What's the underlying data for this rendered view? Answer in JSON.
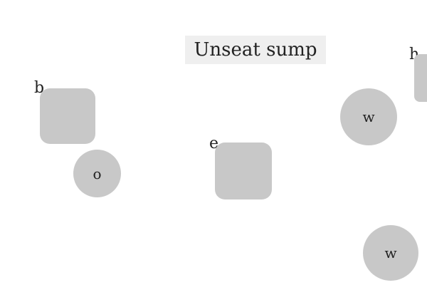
{
  "title": "Unseat sump",
  "labels": {
    "b": "b",
    "e": "e",
    "h": "h"
  },
  "circles": {
    "o": "o",
    "w_top": "w",
    "w_bottom": "w"
  },
  "colors": {
    "background": "#ffffff",
    "title_box": "#efefef",
    "shape_fill": "#c8c8c8",
    "text": "#222222"
  }
}
